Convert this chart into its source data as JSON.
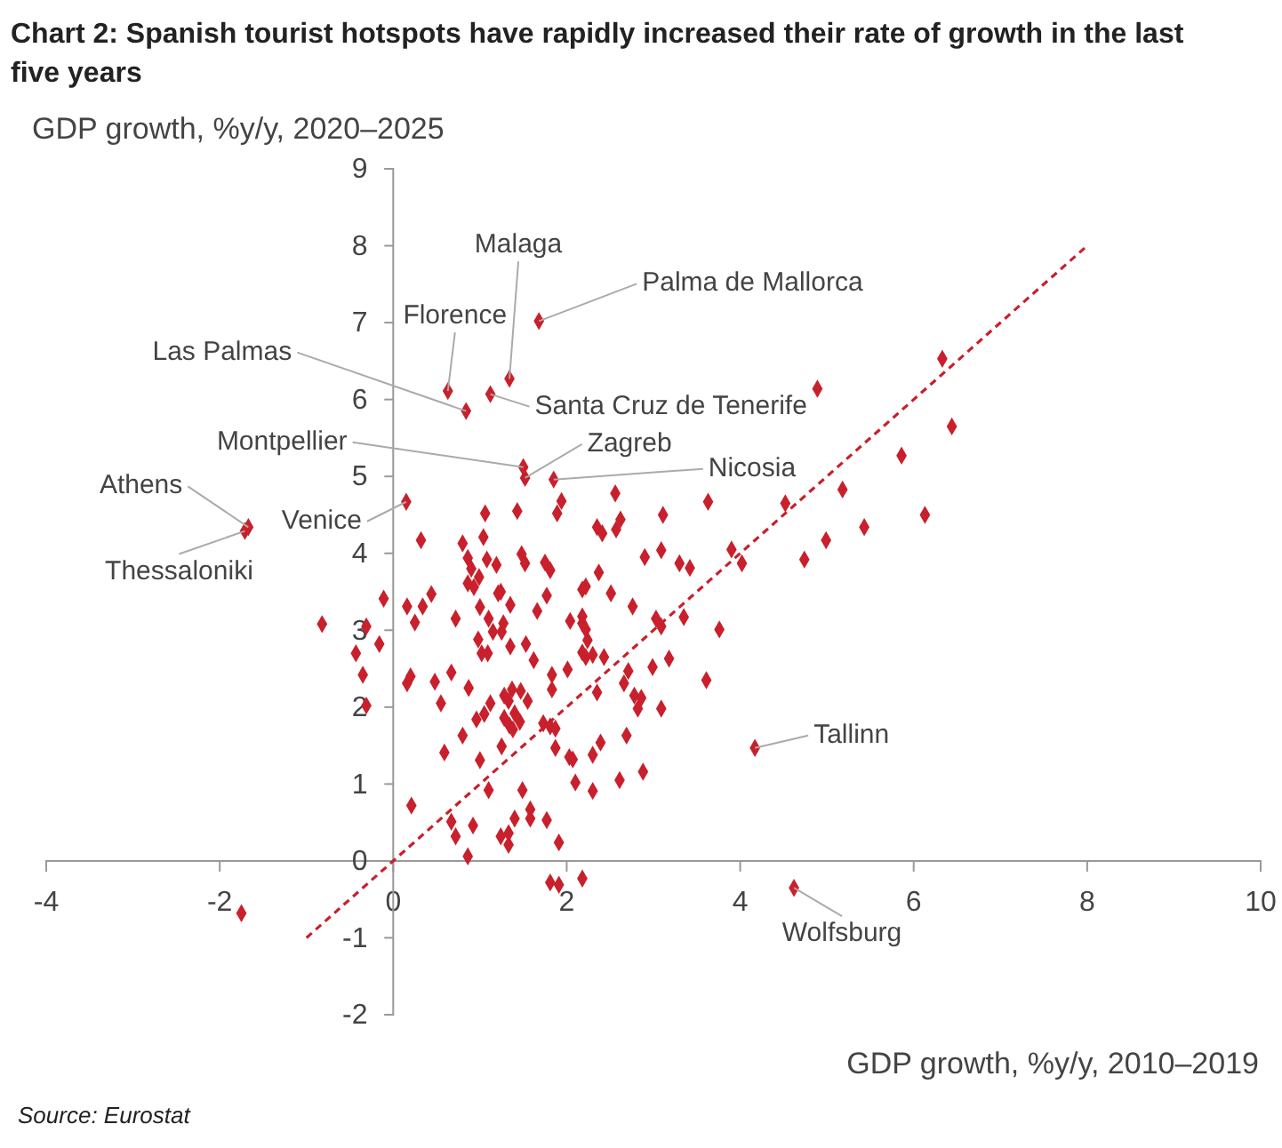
{
  "chart_data": {
    "type": "scatter",
    "title": "Chart 2: Spanish tourist hotspots have rapidly increased their rate of growth in the last five years",
    "xlabel": "GDP growth, %y/y, 2010–2019",
    "ylabel": "GDP growth, %y/y, 2020–2025",
    "xlim": [
      -4,
      10
    ],
    "ylim": [
      -2,
      9
    ],
    "xticks": [
      -4,
      -2,
      0,
      2,
      4,
      6,
      8,
      10
    ],
    "yticks": [
      -2,
      -1,
      0,
      1,
      2,
      3,
      4,
      5,
      6,
      7,
      8,
      9
    ],
    "grid": false,
    "series": [
      {
        "marker": "diamond",
        "color": "#c8202c",
        "x": [
          1.34,
          0.63,
          0.84,
          1.12,
          1.5,
          1.52,
          -1.67,
          -1.71,
          0.15,
          0.32,
          0.8,
          1.06,
          1.04,
          1.43,
          0.86,
          1.08,
          1.19,
          0.9,
          1.48,
          1.52,
          1.68,
          4.89,
          1.85,
          1.94,
          2.56,
          1.89,
          3.63,
          4.52,
          5.18,
          5.43,
          4.99,
          4.74,
          3.9,
          4.02,
          3.11,
          2.62,
          2.35,
          2.41,
          2.57,
          3.09,
          2.9,
          3.3,
          3.42,
          2.37,
          1.75,
          1.81,
          6.33,
          6.44,
          5.86,
          6.13,
          -0.82,
          -0.31,
          -0.11,
          -0.16,
          -0.43,
          -0.35,
          -0.31,
          -1.75,
          0.16,
          0.25,
          0.34,
          0.44,
          0.16,
          0.2,
          0.48,
          0.55,
          0.67,
          0.72,
          0.99,
          0.86,
          0.93,
          1.0,
          1.21,
          1.24,
          1.35,
          1.1,
          1.27,
          1.15,
          1.25,
          0.98,
          1.35,
          1.53,
          1.62,
          1.02,
          1.09,
          0.87,
          1.12,
          1.28,
          1.37,
          1.47,
          1.33,
          1.55,
          1.4,
          1.05,
          0.96,
          1.28,
          1.46,
          1.34,
          1.38,
          0.8,
          1.25,
          0.59,
          1.0,
          1.1,
          1.49,
          1.58,
          1.58,
          1.4,
          0.21,
          0.67,
          0.92,
          0.72,
          1.24,
          1.33,
          1.33,
          0.86,
          2.22,
          2.18,
          1.77,
          2.51,
          1.66,
          2.76,
          2.04,
          2.18,
          2.18,
          2.22,
          2.24,
          3.03,
          3.09,
          3.35,
          3.76,
          2.18,
          2.22,
          2.3,
          2.43,
          3.18,
          2.99,
          2.71,
          2.01,
          1.83,
          1.83,
          2.66,
          2.35,
          2.78,
          2.86,
          2.82,
          3.09,
          3.61,
          1.73,
          1.81,
          1.87,
          1.87,
          2.69,
          2.39,
          2.3,
          2.03,
          2.07,
          2.1,
          2.3,
          2.61,
          2.88,
          1.77,
          1.91,
          1.81,
          1.91,
          2.18,
          4.17,
          4.62
        ],
        "values": [
          6.27,
          6.11,
          5.85,
          6.07,
          5.12,
          4.98,
          4.34,
          4.29,
          4.67,
          4.17,
          4.13,
          4.52,
          4.21,
          4.55,
          3.94,
          3.92,
          3.85,
          3.8,
          3.99,
          3.87,
          7.02,
          6.14,
          4.96,
          4.68,
          4.78,
          4.52,
          4.67,
          4.65,
          4.83,
          4.34,
          4.17,
          3.92,
          4.05,
          3.87,
          4.5,
          4.44,
          4.34,
          4.26,
          4.31,
          4.04,
          3.95,
          3.87,
          3.81,
          3.75,
          3.88,
          3.78,
          6.53,
          5.65,
          5.27,
          4.5,
          3.08,
          3.05,
          3.41,
          2.82,
          2.7,
          2.42,
          2.02,
          -0.68,
          3.31,
          3.1,
          3.31,
          3.47,
          2.31,
          2.4,
          2.33,
          2.05,
          2.45,
          3.15,
          3.69,
          3.61,
          3.56,
          3.3,
          3.48,
          3.5,
          3.33,
          3.15,
          3.09,
          2.98,
          2.98,
          2.88,
          2.79,
          2.82,
          2.61,
          2.7,
          2.7,
          2.25,
          2.05,
          2.15,
          2.23,
          2.21,
          2.08,
          2.08,
          1.92,
          1.91,
          1.84,
          1.86,
          1.81,
          1.76,
          1.71,
          1.63,
          1.49,
          1.41,
          1.31,
          0.92,
          0.92,
          0.67,
          0.55,
          0.55,
          0.72,
          0.51,
          0.46,
          0.32,
          0.32,
          0.36,
          0.21,
          0.06,
          3.57,
          3.53,
          3.45,
          3.48,
          3.25,
          3.31,
          3.12,
          3.18,
          3.09,
          3.01,
          2.87,
          3.15,
          3.05,
          3.17,
          3.01,
          2.71,
          2.65,
          2.68,
          2.65,
          2.63,
          2.52,
          2.47,
          2.49,
          2.42,
          2.23,
          2.31,
          2.19,
          2.15,
          2.12,
          1.98,
          1.98,
          2.35,
          1.79,
          1.75,
          1.72,
          1.47,
          1.63,
          1.54,
          1.38,
          1.35,
          1.32,
          1.02,
          0.91,
          1.05,
          1.16,
          0.53,
          0.24,
          -0.28,
          -0.31,
          -0.23,
          1.47,
          -0.35
        ]
      },
      {
        "type": "line",
        "color": "#c8202c",
        "line_style": "dashed",
        "x": [
          -1,
          8
        ],
        "values": [
          -1,
          8
        ]
      }
    ],
    "annotations": [
      {
        "text": "Malaga",
        "x": 1.34,
        "y": 6.27
      },
      {
        "text": "Palma de Mallorca",
        "x": 1.68,
        "y": 7.02
      },
      {
        "text": "Florence",
        "x": 0.63,
        "y": 6.11
      },
      {
        "text": "Las Palmas",
        "x": 0.84,
        "y": 5.85
      },
      {
        "text": "Santa Cruz de Tenerife",
        "x": 1.12,
        "y": 6.07
      },
      {
        "text": "Montpellier",
        "x": 1.5,
        "y": 5.12
      },
      {
        "text": "Zagreb",
        "x": 1.52,
        "y": 4.98
      },
      {
        "text": "Nicosia",
        "x": 1.85,
        "y": 4.96
      },
      {
        "text": "Athens",
        "x": -1.67,
        "y": 4.34
      },
      {
        "text": "Thessaloniki",
        "x": -1.71,
        "y": 4.29
      },
      {
        "text": "Venice",
        "x": 0.15,
        "y": 4.67
      },
      {
        "text": "Tallinn",
        "x": 4.17,
        "y": 1.47
      },
      {
        "text": "Wolfsburg",
        "x": 4.62,
        "y": -0.35
      },
      "Source: Eurostat"
    ]
  }
}
